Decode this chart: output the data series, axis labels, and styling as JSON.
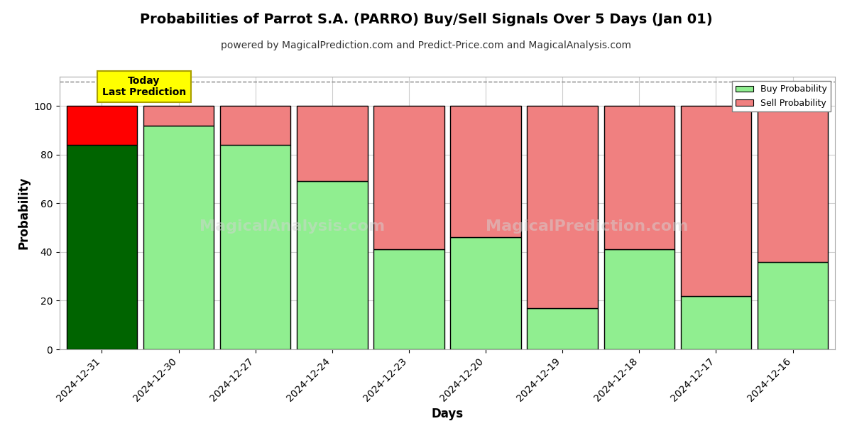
{
  "title": "Probabilities of Parrot S.A. (PARRO) Buy/Sell Signals Over 5 Days (Jan 01)",
  "subtitle": "powered by MagicalPrediction.com and Predict-Price.com and MagicalAnalysis.com",
  "xlabel": "Days",
  "ylabel": "Probability",
  "watermark1": "MagicalAnalysis.com",
  "watermark2": "MagicalPrediction.com",
  "dates": [
    "2024-12-31",
    "2024-12-30",
    "2024-12-27",
    "2024-12-24",
    "2024-12-23",
    "2024-12-20",
    "2024-12-19",
    "2024-12-18",
    "2024-12-17",
    "2024-12-16"
  ],
  "buy_values": [
    84,
    92,
    84,
    69,
    41,
    46,
    17,
    41,
    22,
    36
  ],
  "sell_values": [
    16,
    8,
    16,
    31,
    59,
    54,
    83,
    59,
    78,
    64
  ],
  "today_bar_buy_color": "#006400",
  "today_bar_sell_color": "#ff0000",
  "normal_bar_buy_color": "#90EE90",
  "normal_bar_sell_color": "#F08080",
  "bar_edge_color": "#000000",
  "ylim": [
    0,
    112
  ],
  "yticks": [
    0,
    20,
    40,
    60,
    80,
    100
  ],
  "dashed_line_y": 110,
  "legend_buy_color": "#90EE90",
  "legend_sell_color": "#F08080",
  "today_box_color": "#FFFF00",
  "today_label": "Today\nLast Prediction",
  "bg_color": "#ffffff",
  "grid_color": "#cccccc",
  "title_fontsize": 14,
  "subtitle_fontsize": 10,
  "axis_label_fontsize": 12,
  "tick_fontsize": 10,
  "bar_width": 0.92
}
